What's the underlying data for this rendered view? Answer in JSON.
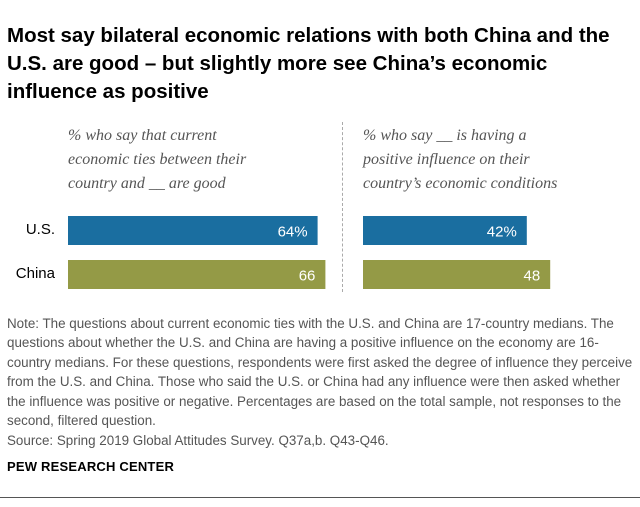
{
  "title": "Most say bilateral economic relations with both China and the U.S. are good – but slightly more see China’s economic influence as positive",
  "note": "Note: The questions about current economic ties with the U.S. and China are 17-country medians. The questions about whether the U.S. and China are having a positive influence on the economy are 16-country medians. For these questions, respondents were first asked the degree of influence they perceive from the U.S. and China. Those who said the U.S. or China had any influence were then asked whether the influence was positive or negative. Percentages are based on the total sample, not responses to the second, filtered question.",
  "source": "Source: Spring 2019 Global Attitudes Survey. Q37a,b. Q43-Q46.",
  "brand": "PEW RESEARCH CENTER",
  "colors": {
    "us": "#1a6ea0",
    "china": "#949a46",
    "bar_label": "#ffffff"
  },
  "chart_data": [
    {
      "type": "bar",
      "orientation": "horizontal",
      "title": "% who say that current\neconomic ties between their\ncountry and __ are good",
      "categories": [
        "U.S.",
        "China"
      ],
      "values": [
        64,
        66
      ],
      "value_labels": [
        "64%",
        "66"
      ],
      "xlim": [
        0,
        100
      ]
    },
    {
      "type": "bar",
      "orientation": "horizontal",
      "title": "% who say __ is having a\npositive influence on their\ncountry’s economic conditions",
      "categories": [
        "U.S.",
        "China"
      ],
      "values": [
        42,
        48
      ],
      "value_labels": [
        "42%",
        "48"
      ],
      "xlim": [
        0,
        100
      ]
    }
  ]
}
